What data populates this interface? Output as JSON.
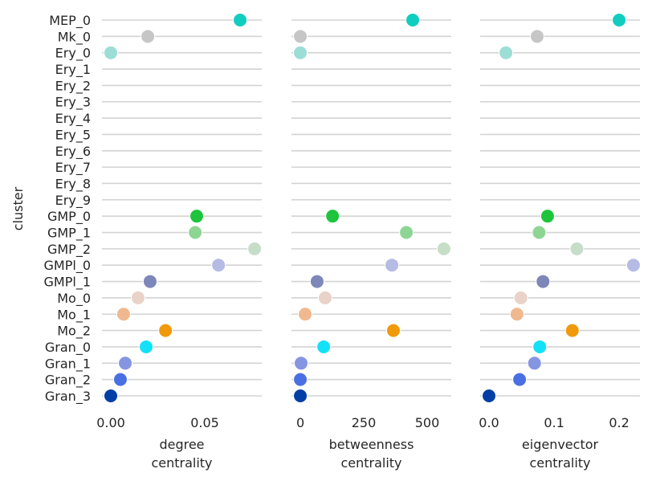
{
  "chart_data": {
    "type": "scatter",
    "ylabel": "cluster",
    "grid": "horizontal",
    "categories": [
      "MEP_0",
      "Mk_0",
      "Ery_0",
      "Ery_1",
      "Ery_2",
      "Ery_3",
      "Ery_4",
      "Ery_5",
      "Ery_6",
      "Ery_7",
      "Ery_8",
      "Ery_9",
      "GMP_0",
      "GMP_1",
      "GMP_2",
      "GMPl_0",
      "GMPl_1",
      "Mo_0",
      "Mo_1",
      "Mo_2",
      "Gran_0",
      "Gran_1",
      "Gran_2",
      "Gran_3"
    ],
    "colors": {
      "MEP_0": "#11cdbf",
      "Mk_0": "#c6c6c6",
      "Ery_0": "#9cded6",
      "GMP_0": "#1ec43c",
      "GMP_1": "#8dd593",
      "GMP_2": "#c6dec7",
      "GMPl_0": "#b5bbe3",
      "GMPl_1": "#7d87b9",
      "Mo_0": "#e9d2c7",
      "Mo_1": "#efb88e",
      "Mo_2": "#f0990b",
      "Gran_0": "#14e1f8",
      "Gran_1": "#8595e1",
      "Gran_2": "#4a6fe3",
      "Gran_3": "#023fa5"
    },
    "panels": [
      {
        "xlabel": [
          "degree",
          "centrality"
        ],
        "xlim": [
          -0.0047,
          0.0803
        ],
        "xticks": [
          0,
          0.05
        ],
        "xtick_labels": [
          "0.00",
          "0.05"
        ],
        "values": {
          "MEP_0": 0.0688,
          "Mk_0": 0.0197,
          "Ery_0": 0.0,
          "GMP_0": 0.0457,
          "GMP_1": 0.0449,
          "GMP_2": 0.0765,
          "GMPl_0": 0.0573,
          "GMPl_1": 0.0209,
          "Mo_0": 0.0145,
          "Mo_1": 0.0068,
          "Mo_2": 0.0291,
          "Gran_0": 0.0188,
          "Gran_1": 0.0077,
          "Gran_2": 0.0051,
          "Gran_3": 0.0
        }
      },
      {
        "xlabel": [
          "betweenness",
          "centrality"
        ],
        "xlim": [
          -35,
          595
        ],
        "xticks": [
          0,
          250,
          500
        ],
        "xtick_labels": [
          "0",
          "250",
          "500"
        ],
        "values": {
          "MEP_0": 443,
          "Mk_0": 0,
          "Ery_0": 0,
          "GMP_0": 127,
          "GMP_1": 418,
          "GMP_2": 566,
          "GMPl_0": 361,
          "GMPl_1": 66,
          "Mo_0": 98,
          "Mo_1": 19,
          "Mo_2": 367,
          "Gran_0": 92,
          "Gran_1": 3,
          "Gran_2": 0,
          "Gran_3": 0
        }
      },
      {
        "xlabel": [
          "eigenvector",
          "centrality"
        ],
        "xlim": [
          -0.0136,
          0.232
        ],
        "xticks": [
          0,
          0.1,
          0.2
        ],
        "xtick_labels": [
          "0.0",
          "0.1",
          "0.2"
        ],
        "values": {
          "MEP_0": 0.2,
          "Mk_0": 0.074,
          "Ery_0": 0.026,
          "GMP_0": 0.09,
          "GMP_1": 0.077,
          "GMP_2": 0.135,
          "GMPl_0": 0.222,
          "GMPl_1": 0.083,
          "Mo_0": 0.049,
          "Mo_1": 0.043,
          "Mo_2": 0.128,
          "Gran_0": 0.078,
          "Gran_1": 0.07,
          "Gran_2": 0.047,
          "Gran_3": 0.0
        }
      }
    ]
  }
}
